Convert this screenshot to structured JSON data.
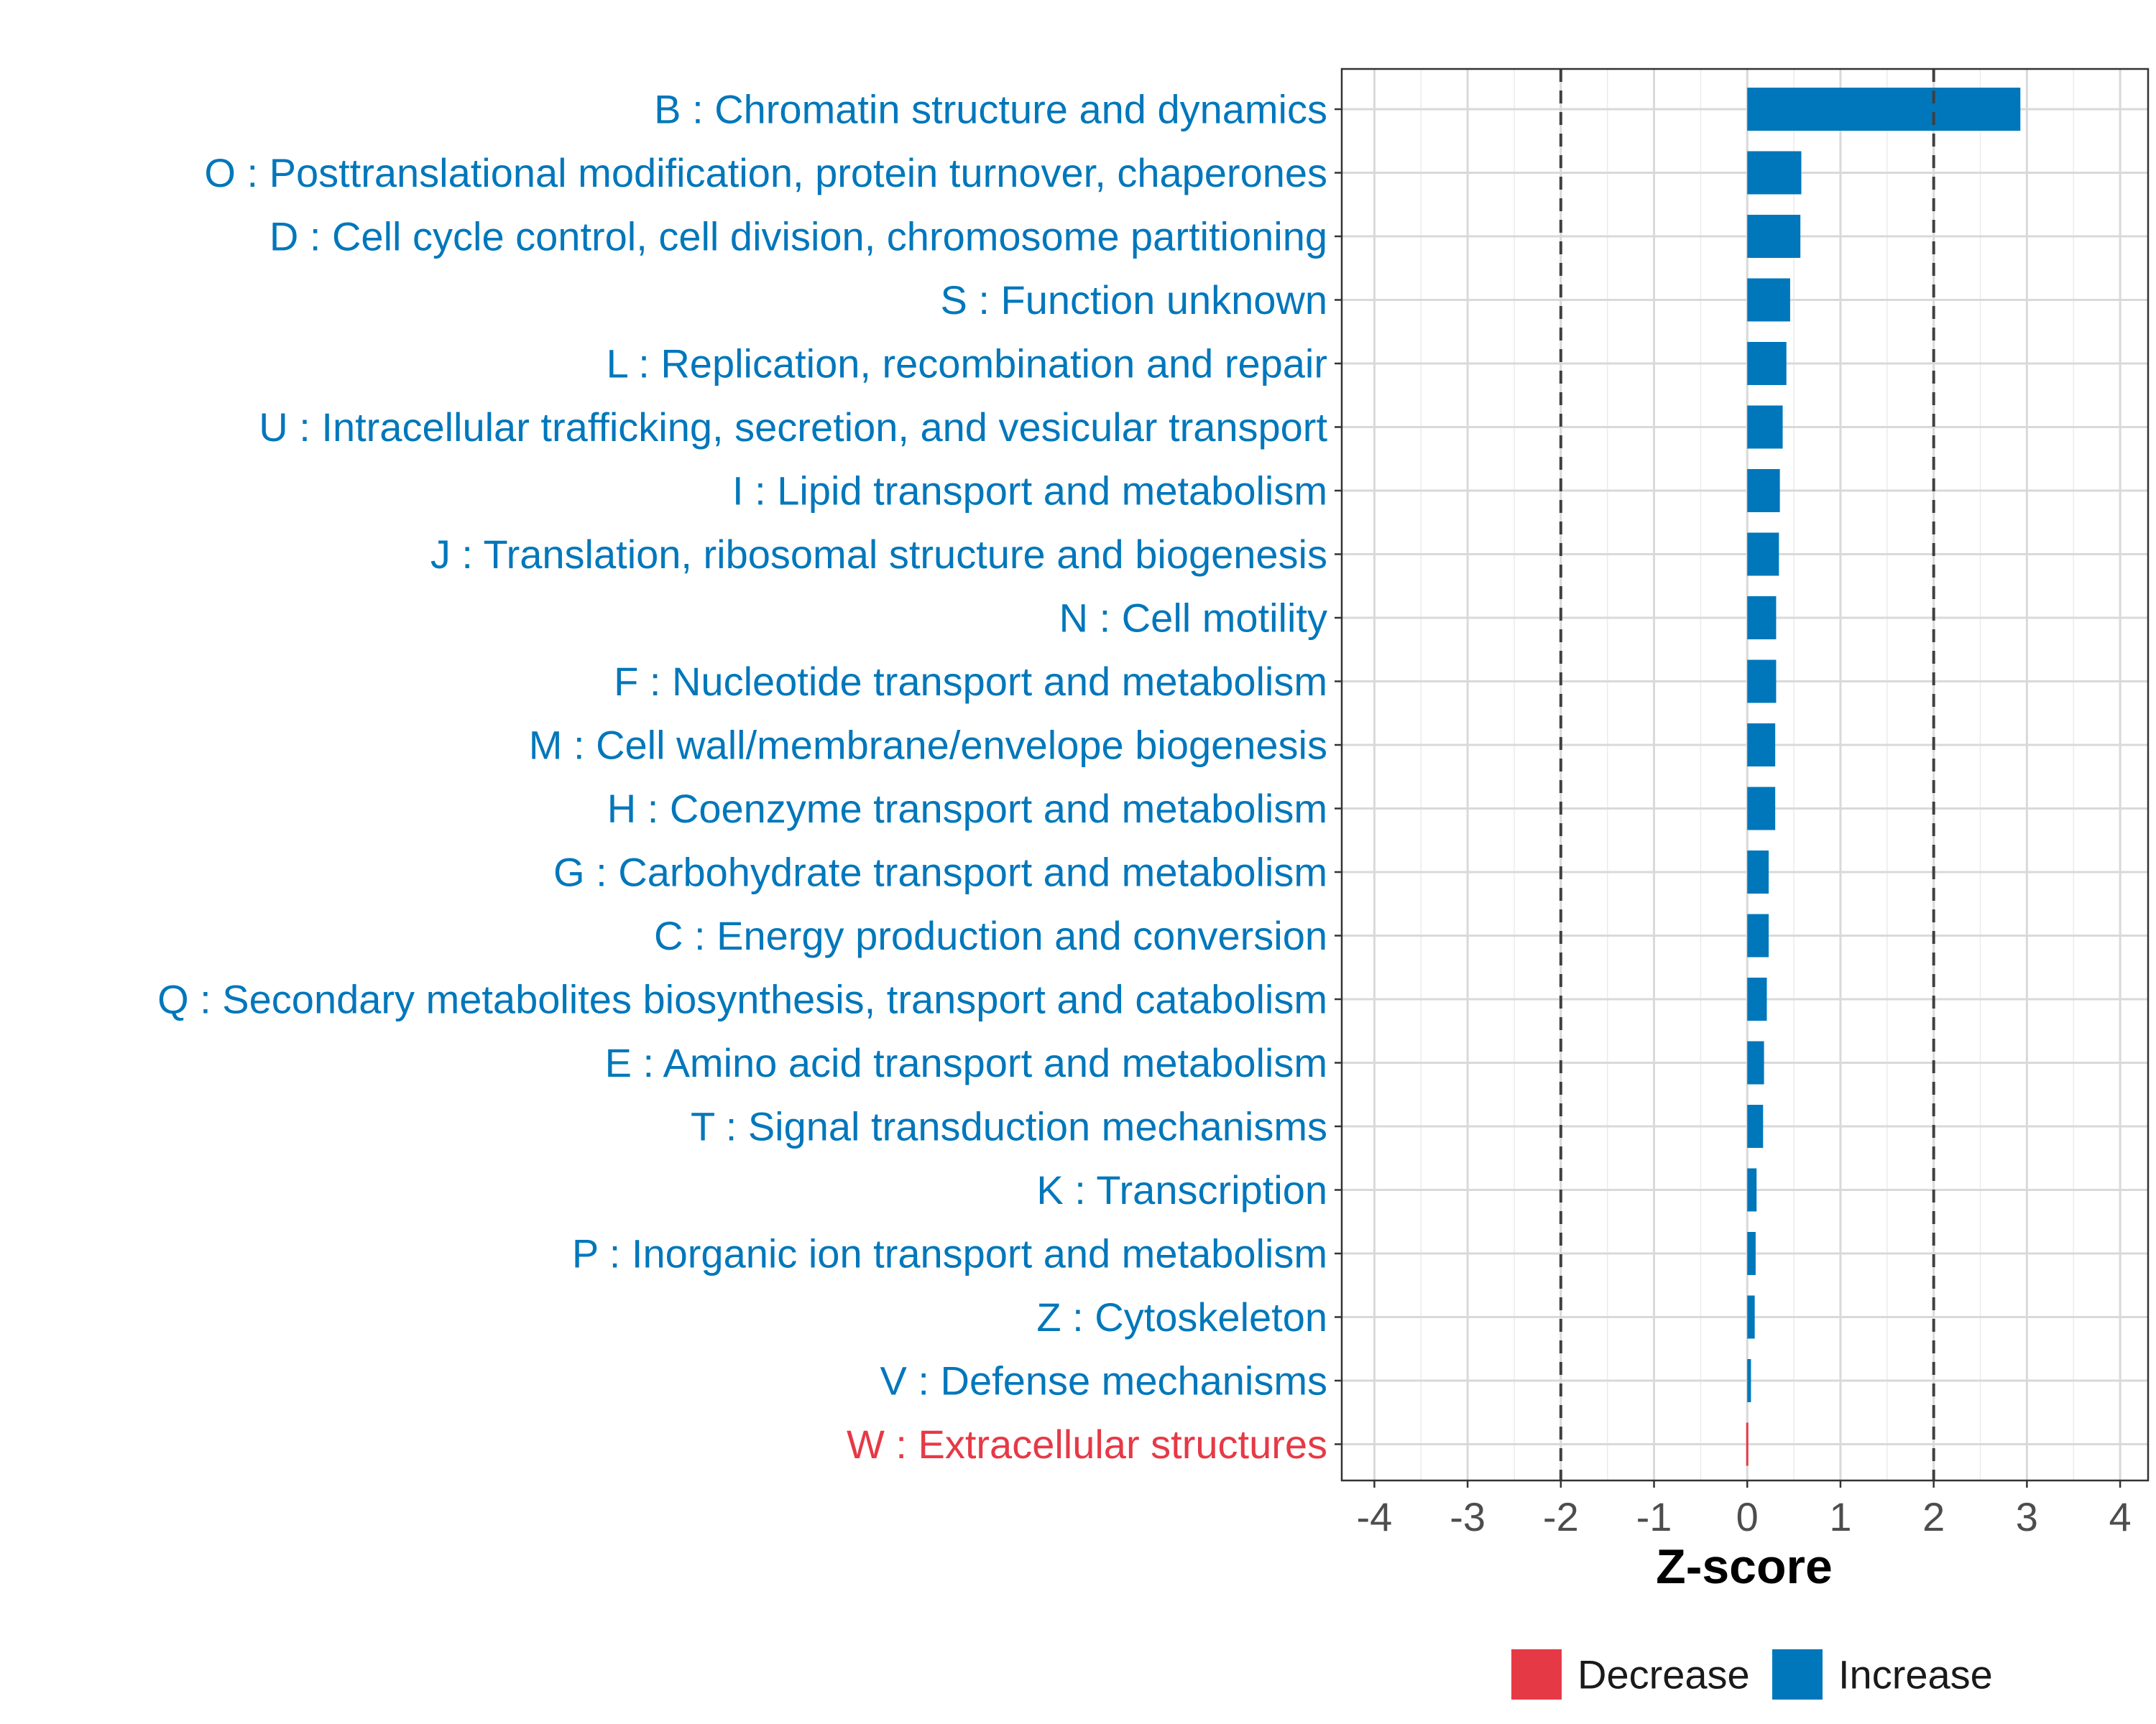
{
  "chart_data": {
    "type": "bar",
    "orientation": "horizontal",
    "title": "",
    "xlabel": "Z-score",
    "ylabel": "",
    "xlim": [
      -4.35,
      4.3
    ],
    "xticks": [
      -4,
      -3,
      -2,
      -1,
      0,
      1,
      2,
      3,
      4
    ],
    "xtick_labels": [
      "-4",
      "-3",
      "-2",
      "-1",
      "0",
      "1",
      "2",
      "3",
      "4"
    ],
    "reference_lines": [
      -2,
      2
    ],
    "grid": true,
    "legend_position": "bottom",
    "colors": {
      "Decrease": "#E63946",
      "Increase": "#0077BB",
      "reference_line": "#404040",
      "grid": "#d9d9d9"
    },
    "legend": [
      {
        "name": "Decrease",
        "color": "#E63946"
      },
      {
        "name": "Increase",
        "color": "#0077BB"
      }
    ],
    "categories": [
      "B : Chromatin structure and dynamics",
      "O : Posttranslational modification, protein turnover, chaperones",
      "D : Cell cycle control, cell division, chromosome partitioning",
      "S : Function unknown",
      "L : Replication, recombination and repair",
      "U : Intracellular trafficking, secretion, and vesicular transport",
      "I : Lipid transport and metabolism",
      "J : Translation, ribosomal structure and biogenesis",
      "N : Cell motility",
      "F : Nucleotide transport and metabolism",
      "M : Cell wall/membrane/envelope biogenesis",
      "H : Coenzyme transport and metabolism",
      "G : Carbohydrate transport and metabolism",
      "C : Energy production and conversion",
      "Q : Secondary metabolites biosynthesis, transport and catabolism",
      "E : Amino acid transport and metabolism",
      "T : Signal transduction mechanisms",
      "K : Transcription",
      "P : Inorganic ion transport and metabolism",
      "Z : Cytoskeleton",
      "V : Defense mechanisms",
      "W : Extracellular structures"
    ],
    "values": [
      2.93,
      0.58,
      0.57,
      0.46,
      0.42,
      0.38,
      0.35,
      0.34,
      0.31,
      0.31,
      0.3,
      0.3,
      0.23,
      0.23,
      0.21,
      0.18,
      0.17,
      0.1,
      0.09,
      0.08,
      0.04,
      -0.02
    ],
    "direction": [
      "Increase",
      "Increase",
      "Increase",
      "Increase",
      "Increase",
      "Increase",
      "Increase",
      "Increase",
      "Increase",
      "Increase",
      "Increase",
      "Increase",
      "Increase",
      "Increase",
      "Increase",
      "Increase",
      "Increase",
      "Increase",
      "Increase",
      "Increase",
      "Increase",
      "Decrease"
    ]
  }
}
